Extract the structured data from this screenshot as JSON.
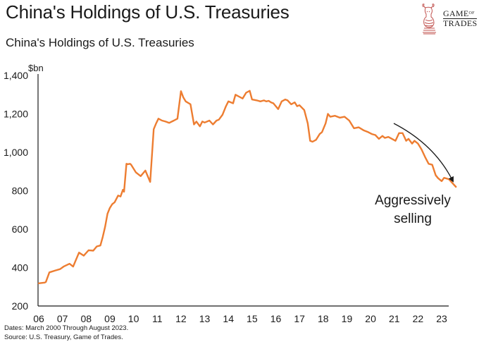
{
  "header": {
    "title": "China's Holdings of U.S. Treasuries",
    "brand_line1": "GAME",
    "brand_of": "OF",
    "brand_line2": "TRADES",
    "brand_icon": "bull-chess-knight-icon"
  },
  "footer": {
    "dates_note": "Dates: March 2000 Through August 2023.",
    "source_note": "Source: U.S. Treasury, Game of Trades."
  },
  "chart_data": {
    "type": "line",
    "title": "China's Holdings of U.S. Treasuries",
    "xlabel": "",
    "ylabel": "$bn",
    "ylim": [
      200,
      1400
    ],
    "xlim": [
      2006.0,
      2023.67
    ],
    "y_ticks": [
      200,
      400,
      600,
      800,
      1000,
      1200,
      1400
    ],
    "y_tick_labels": [
      "200",
      "400",
      "600",
      "800",
      "1,000",
      "1,200",
      "1,400"
    ],
    "x_ticks": [
      2006,
      2007,
      2008,
      2009,
      2010,
      2011,
      2012,
      2013,
      2014,
      2015,
      2016,
      2017,
      2018,
      2019,
      2020,
      2021,
      2022,
      2023
    ],
    "x_tick_labels": [
      "06",
      "07",
      "08",
      "09",
      "10",
      "11",
      "12",
      "13",
      "14",
      "15",
      "16",
      "17",
      "18",
      "19",
      "20",
      "21",
      "22",
      "23"
    ],
    "grid": false,
    "line_color": "#ED7D31",
    "series": [
      {
        "name": "China's Holdings of U.S. Treasuries ($bn)",
        "x": [
          2006.0,
          2006.25,
          2006.3,
          2006.45,
          2006.7,
          2006.9,
          2007.05,
          2007.3,
          2007.45,
          2007.7,
          2007.9,
          2008.1,
          2008.3,
          2008.45,
          2008.6,
          2008.7,
          2008.8,
          2008.9,
          2009.0,
          2009.1,
          2009.2,
          2009.35,
          2009.45,
          2009.55,
          2009.6,
          2009.7,
          2009.75,
          2009.85,
          2009.9,
          2010.1,
          2010.3,
          2010.5,
          2010.6,
          2010.7,
          2010.85,
          2010.95,
          2011.05,
          2011.2,
          2011.35,
          2011.5,
          2011.7,
          2011.85,
          2012.0,
          2012.1,
          2012.2,
          2012.4,
          2012.55,
          2012.65,
          2012.8,
          2012.9,
          2013.0,
          2013.2,
          2013.35,
          2013.5,
          2013.6,
          2013.75,
          2013.9,
          2014.0,
          2014.2,
          2014.3,
          2014.45,
          2014.6,
          2014.75,
          2014.9,
          2015.0,
          2015.2,
          2015.35,
          2015.5,
          2015.6,
          2015.7,
          2015.8,
          2015.9,
          2016.0,
          2016.1,
          2016.25,
          2016.4,
          2016.5,
          2016.65,
          2016.8,
          2016.9,
          2017.0,
          2017.2,
          2017.35,
          2017.45,
          2017.55,
          2017.7,
          2017.85,
          2017.95,
          2018.1,
          2018.2,
          2018.3,
          2018.5,
          2018.7,
          2018.9,
          2019.1,
          2019.3,
          2019.5,
          2019.7,
          2019.9,
          2020.05,
          2020.2,
          2020.35,
          2020.5,
          2020.6,
          2020.75,
          2020.9,
          2021.05,
          2021.2,
          2021.35,
          2021.5,
          2021.6,
          2021.75,
          2021.85,
          2022.0,
          2022.15,
          2022.3,
          2022.45,
          2022.6,
          2022.75,
          2022.85,
          2023.0,
          2023.1,
          2023.3,
          2023.45,
          2023.6
        ],
        "y": [
          318,
          322,
          325,
          375,
          385,
          392,
          405,
          420,
          405,
          478,
          462,
          490,
          488,
          510,
          515,
          560,
          612,
          680,
          710,
          730,
          740,
          775,
          770,
          805,
          795,
          940,
          938,
          940,
          935,
          895,
          876,
          905,
          875,
          846,
          1120,
          1150,
          1175,
          1165,
          1160,
          1153,
          1165,
          1175,
          1318,
          1285,
          1265,
          1250,
          1145,
          1160,
          1135,
          1160,
          1155,
          1165,
          1145,
          1165,
          1170,
          1195,
          1240,
          1265,
          1255,
          1300,
          1290,
          1280,
          1310,
          1320,
          1275,
          1270,
          1265,
          1270,
          1265,
          1268,
          1260,
          1255,
          1240,
          1225,
          1265,
          1275,
          1270,
          1250,
          1260,
          1240,
          1245,
          1220,
          1150,
          1060,
          1055,
          1065,
          1095,
          1105,
          1150,
          1200,
          1185,
          1190,
          1180,
          1185,
          1165,
          1125,
          1130,
          1115,
          1105,
          1095,
          1090,
          1070,
          1085,
          1075,
          1080,
          1070,
          1060,
          1100,
          1100,
          1060,
          1070,
          1045,
          1060,
          1045,
          1015,
          975,
          940,
          935,
          880,
          865,
          850,
          867,
          860,
          840,
          820
        ]
      }
    ],
    "annotations": [
      {
        "text_line1": "Aggressively",
        "text_line2": "selling",
        "type": "curved-arrow",
        "direction": "down-right",
        "near_x": [
          2021.0,
          2023.6
        ],
        "near_y": [
          1150,
          850
        ]
      }
    ]
  }
}
